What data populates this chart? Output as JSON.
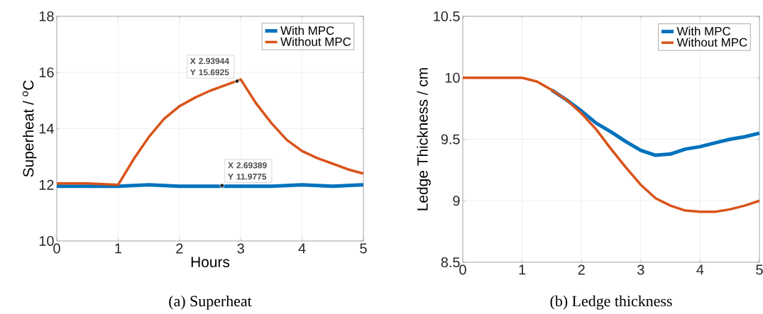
{
  "chart_data": [
    {
      "type": "line",
      "title": "(a) Superheat",
      "xlabel": "Hours",
      "ylabel": "Superheat / $^{o}$C",
      "xlim": [
        0,
        5
      ],
      "ylim": [
        10,
        18
      ],
      "xticks": [
        0,
        1,
        2,
        3,
        4,
        5
      ],
      "yticks": [
        10,
        12,
        14,
        16,
        18
      ],
      "grid": true,
      "legend": "top right",
      "series": [
        {
          "name": "With MPC",
          "color": "#0072bd",
          "x": [
            0,
            0.5,
            1,
            1.5,
            2,
            2.5,
            3,
            3.5,
            4,
            4.5,
            5
          ],
          "values": [
            11.95,
            11.95,
            11.95,
            12.0,
            11.95,
            11.95,
            11.95,
            11.95,
            12.0,
            11.95,
            12.0
          ]
        },
        {
          "name": "Without MPC",
          "color": "#d95319",
          "x": [
            0,
            0.5,
            1,
            1.25,
            1.5,
            1.75,
            2,
            2.25,
            2.5,
            2.75,
            2.94,
            3,
            3.25,
            3.5,
            3.75,
            4,
            4.25,
            4.5,
            4.75,
            5
          ],
          "values": [
            12.05,
            12.05,
            12.0,
            12.9,
            13.7,
            14.35,
            14.8,
            15.1,
            15.35,
            15.55,
            15.7,
            15.75,
            14.9,
            14.2,
            13.6,
            13.2,
            12.95,
            12.75,
            12.55,
            12.4
          ]
        }
      ],
      "annotations": [
        {
          "text": "X 2.93944 Y 15.6925",
          "x": 2.93944,
          "y": 15.6925
        },
        {
          "text": "X 2.69389 Y 11.9775",
          "x": 2.69389,
          "y": 11.9775
        }
      ]
    },
    {
      "type": "line",
      "title": "(b) Ledge thickness",
      "ylabel": "Ledge Thickness / cm",
      "xlim": [
        0,
        5
      ],
      "ylim": [
        8.5,
        10.5
      ],
      "xticks": [
        0,
        1,
        2,
        3,
        4,
        5
      ],
      "yticks": [
        8.5,
        9,
        9.5,
        10,
        10.5
      ],
      "grid": true,
      "legend": "top right",
      "series": [
        {
          "name": "With MPC",
          "color": "#0072bd",
          "x": [
            1.5,
            1.75,
            2,
            2.25,
            2.5,
            2.75,
            3,
            3.25,
            3.5,
            3.75,
            4,
            4.25,
            4.5,
            4.75,
            5
          ],
          "values": [
            9.9,
            9.82,
            9.73,
            9.63,
            9.56,
            9.48,
            9.41,
            9.37,
            9.38,
            9.42,
            9.44,
            9.47,
            9.5,
            9.52,
            9.55
          ]
        },
        {
          "name": "Without MPC",
          "color": "#d95319",
          "x": [
            0,
            0.5,
            1,
            1.25,
            1.5,
            1.75,
            2,
            2.25,
            2.5,
            2.75,
            3,
            3.25,
            3.5,
            3.75,
            4,
            4.25,
            4.5,
            4.75,
            5
          ],
          "values": [
            10.0,
            10.0,
            10.0,
            9.97,
            9.9,
            9.82,
            9.71,
            9.58,
            9.42,
            9.27,
            9.13,
            9.02,
            8.96,
            8.92,
            8.91,
            8.91,
            8.93,
            8.96,
            9.0
          ]
        }
      ]
    }
  ]
}
